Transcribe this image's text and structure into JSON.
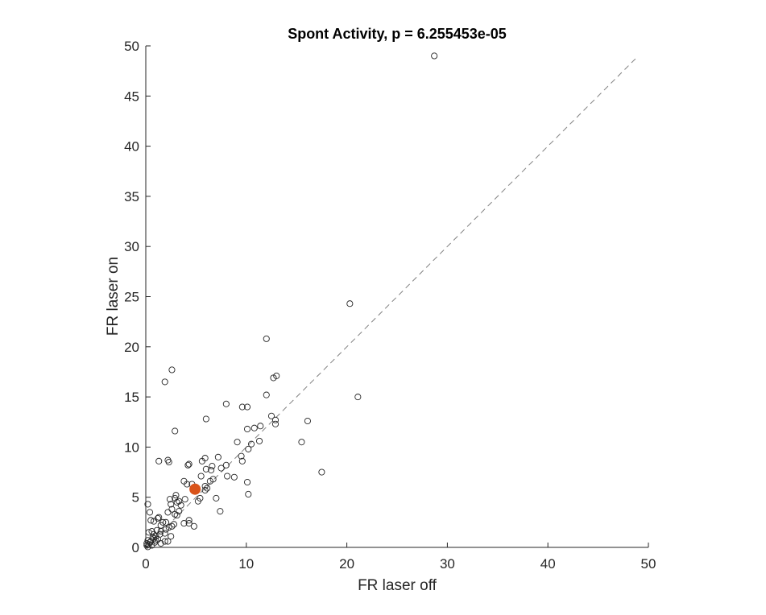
{
  "chart_data": {
    "type": "scatter",
    "title": "Spont Activity, p = 6.255453e-05",
    "xlabel": "FR laser off",
    "ylabel": "FR laser on",
    "xlim": [
      0,
      50
    ],
    "ylim": [
      0,
      50
    ],
    "xticks": [
      "0",
      "10",
      "20",
      "30",
      "40",
      "50"
    ],
    "yticks": [
      "0",
      "5",
      "10",
      "15",
      "20",
      "25",
      "30",
      "35",
      "40",
      "45",
      "50"
    ],
    "grid": false,
    "legend": null,
    "reference_line": {
      "style": "dashed",
      "color": "#808080",
      "from": [
        0,
        0
      ],
      "to": [
        48.8,
        48.8
      ]
    },
    "series": [
      {
        "marker": "open-circle",
        "color": "#262626",
        "points": [
          [
            28.7,
            49.0
          ],
          [
            20.3,
            24.3
          ],
          [
            21.1,
            15.0
          ],
          [
            12.0,
            20.8
          ],
          [
            13.0,
            17.1
          ],
          [
            12.7,
            16.9
          ],
          [
            12.0,
            15.2
          ],
          [
            17.5,
            7.5
          ],
          [
            16.1,
            12.6
          ],
          [
            15.5,
            10.5
          ],
          [
            2.6,
            17.7
          ],
          [
            1.9,
            16.5
          ],
          [
            8.0,
            14.3
          ],
          [
            9.6,
            14.0
          ],
          [
            10.1,
            14.0
          ],
          [
            6.0,
            12.8
          ],
          [
            2.9,
            11.6
          ],
          [
            12.5,
            13.1
          ],
          [
            12.9,
            12.7
          ],
          [
            12.9,
            12.3
          ],
          [
            11.4,
            12.1
          ],
          [
            10.8,
            11.9
          ],
          [
            10.1,
            11.8
          ],
          [
            11.3,
            10.6
          ],
          [
            10.5,
            10.3
          ],
          [
            9.1,
            10.5
          ],
          [
            9.5,
            9.1
          ],
          [
            10.2,
            9.8
          ],
          [
            9.6,
            8.6
          ],
          [
            1.3,
            8.6
          ],
          [
            2.2,
            8.7
          ],
          [
            2.3,
            8.5
          ],
          [
            4.3,
            8.3
          ],
          [
            4.2,
            8.2
          ],
          [
            5.6,
            8.6
          ],
          [
            5.9,
            8.9
          ],
          [
            7.2,
            9.0
          ],
          [
            6.6,
            8.1
          ],
          [
            7.5,
            7.9
          ],
          [
            8.0,
            8.2
          ],
          [
            6.5,
            7.7
          ],
          [
            6.0,
            7.8
          ],
          [
            8.1,
            7.1
          ],
          [
            8.8,
            7.0
          ],
          [
            10.1,
            6.5
          ],
          [
            5.5,
            7.1
          ],
          [
            6.7,
            6.8
          ],
          [
            6.4,
            6.6
          ],
          [
            3.8,
            6.6
          ],
          [
            4.1,
            6.3
          ],
          [
            4.6,
            6.3
          ],
          [
            5.9,
            6.1
          ],
          [
            6.1,
            5.9
          ],
          [
            5.9,
            5.7
          ],
          [
            10.2,
            5.3
          ],
          [
            7.0,
            4.9
          ],
          [
            5.4,
            4.9
          ],
          [
            5.2,
            4.6
          ],
          [
            7.4,
            3.6
          ],
          [
            3.0,
            5.2
          ],
          [
            2.9,
            4.9
          ],
          [
            3.3,
            4.6
          ],
          [
            3.9,
            4.8
          ],
          [
            2.4,
            4.8
          ],
          [
            2.5,
            4.3
          ],
          [
            3.1,
            4.5
          ],
          [
            3.5,
            4.2
          ],
          [
            2.6,
            3.8
          ],
          [
            3.3,
            3.6
          ],
          [
            2.9,
            3.3
          ],
          [
            2.2,
            3.5
          ],
          [
            3.1,
            3.2
          ],
          [
            3.8,
            2.4
          ],
          [
            4.3,
            2.4
          ],
          [
            4.3,
            2.7
          ],
          [
            4.8,
            2.1
          ],
          [
            2.8,
            2.3
          ],
          [
            2.6,
            2.1
          ],
          [
            2.0,
            2.5
          ],
          [
            2.3,
            2.0
          ],
          [
            1.7,
            2.5
          ],
          [
            1.5,
            2.2
          ],
          [
            2.0,
            1.8
          ],
          [
            1.5,
            1.6
          ],
          [
            1.9,
            1.4
          ],
          [
            1.4,
            1.3
          ],
          [
            1.1,
            1.7
          ],
          [
            0.8,
            1.3
          ],
          [
            0.6,
            1.6
          ],
          [
            0.3,
            1.5
          ],
          [
            0.4,
            3.5
          ],
          [
            0.2,
            4.3
          ],
          [
            0.8,
            2.6
          ],
          [
            0.5,
            2.7
          ],
          [
            1.2,
            2.9
          ],
          [
            1.3,
            3.0
          ],
          [
            1.0,
            1.1
          ],
          [
            0.8,
            0.9
          ],
          [
            0.5,
            0.6
          ],
          [
            0.3,
            0.3
          ],
          [
            0.1,
            0.2
          ],
          [
            0.2,
            0.7
          ],
          [
            0.4,
            0.5
          ],
          [
            0.6,
            0.2
          ],
          [
            1.2,
            0.8
          ],
          [
            1.5,
            0.4
          ],
          [
            1.9,
            0.6
          ],
          [
            0.9,
            0.5
          ],
          [
            0.2,
            0.05
          ],
          [
            0.1,
            0.4
          ],
          [
            0.7,
            1.0
          ],
          [
            1.0,
            0.7
          ],
          [
            2.2,
            0.6
          ],
          [
            2.5,
            1.1
          ]
        ]
      },
      {
        "marker": "filled-circle",
        "color": "#D95319",
        "points": [
          [
            4.9,
            5.8
          ]
        ]
      }
    ]
  }
}
